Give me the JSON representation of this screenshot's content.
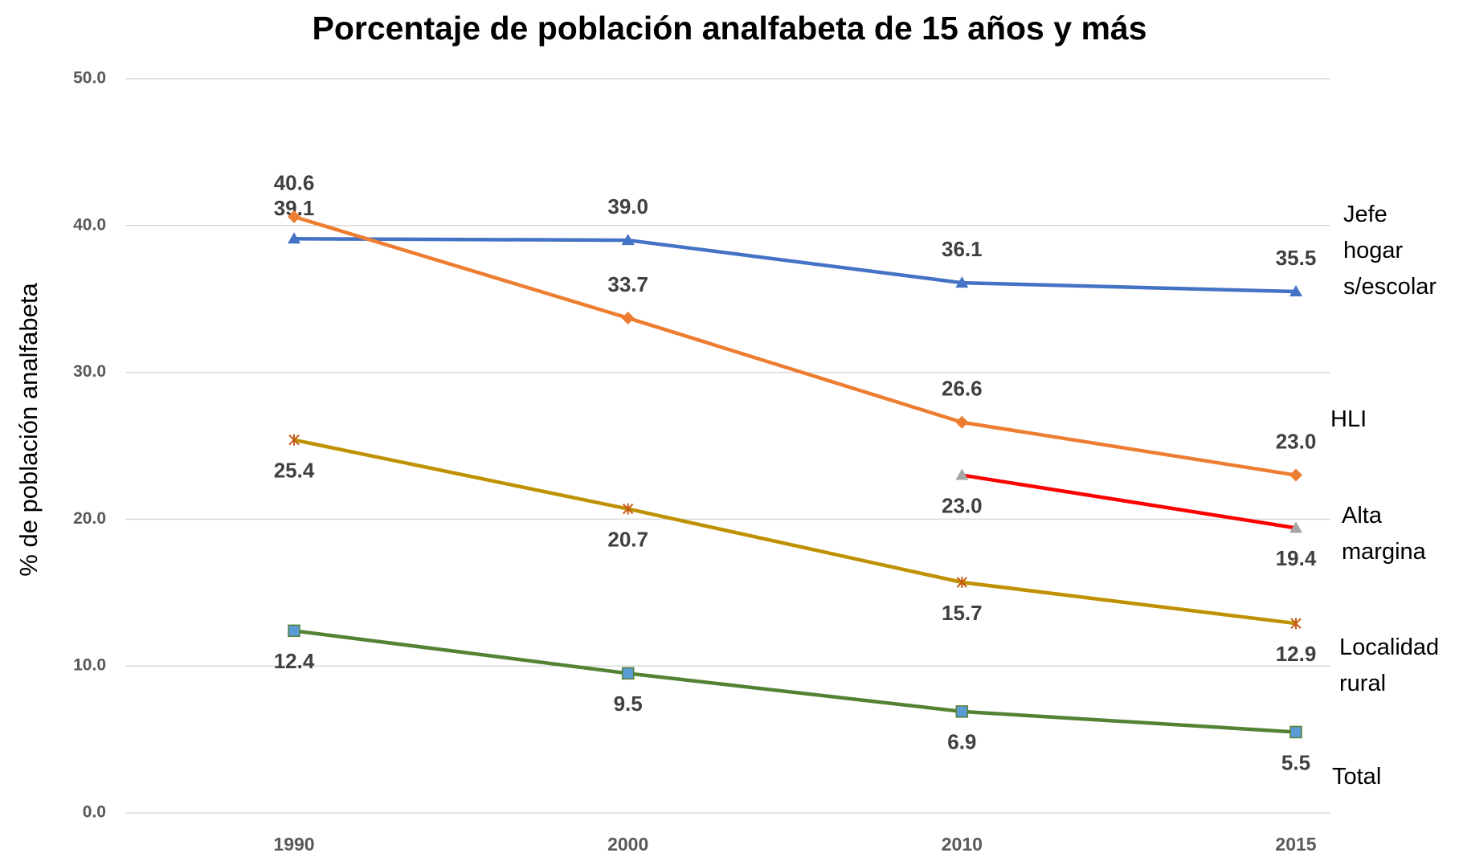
{
  "chart_data": {
    "type": "line",
    "title": "Porcentaje de población analfabeta de 15 años y más",
    "y_label": "% de población analfabeta",
    "categories": [
      "1990",
      "2000",
      "2010",
      "2015"
    ],
    "ylim": [
      0,
      50
    ],
    "yticks": [
      {
        "value": 0,
        "label": "0.0"
      },
      {
        "value": 10,
        "label": "10.0"
      },
      {
        "value": 20,
        "label": "20.0"
      },
      {
        "value": 30,
        "label": "30.0"
      },
      {
        "value": 40,
        "label": "40.0"
      },
      {
        "value": 50,
        "label": "50.0"
      }
    ],
    "grid": true,
    "series": [
      {
        "name": "Jefe hogar s/escolar",
        "color": "#4472c4",
        "marker": "triangle",
        "marker_color": "#4472c4",
        "values": [
          39.1,
          39.0,
          36.1,
          35.5
        ],
        "value_labels": [
          "39.1",
          "39.0",
          "36.1",
          "35.5"
        ]
      },
      {
        "name": "HLI",
        "color": "#ed7d31",
        "marker": "diamond",
        "marker_color": "#ed7d31",
        "values": [
          40.6,
          33.7,
          26.6,
          23.0
        ],
        "value_labels": [
          "40.6",
          "33.7",
          "26.6",
          "23.0"
        ]
      },
      {
        "name": "Alta margina",
        "color": "#ff0000",
        "marker": "triangle",
        "marker_color": "#a5a5a5",
        "values": [
          null,
          null,
          23.0,
          19.4
        ],
        "value_labels": [
          null,
          null,
          "23.0",
          "19.4"
        ]
      },
      {
        "name": "Localidad rural",
        "color": "#bf9000",
        "marker": "star",
        "marker_color": "#c55a11",
        "values": [
          25.4,
          20.7,
          15.7,
          12.9
        ],
        "value_labels": [
          "25.4",
          "20.7",
          "15.7",
          "12.9"
        ]
      },
      {
        "name": "Total",
        "color": "#548235",
        "marker": "square",
        "marker_color": "#5b9bd5",
        "values": [
          12.4,
          9.5,
          6.9,
          5.5
        ],
        "value_labels": [
          "12.4",
          "9.5",
          "6.9",
          "5.5"
        ]
      }
    ]
  }
}
